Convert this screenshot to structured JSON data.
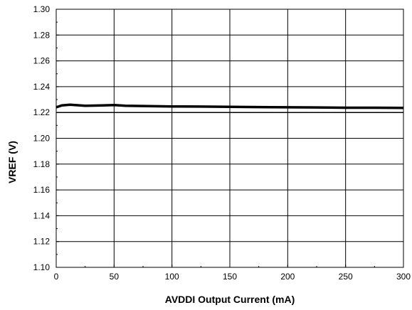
{
  "chart_data": {
    "type": "line",
    "title": "",
    "xlabel": "AVDDI Output Current (mA)",
    "ylabel": "VREF (V)",
    "xlim": [
      0,
      300
    ],
    "ylim": [
      1.1,
      1.3
    ],
    "xticks": [
      "0",
      "50",
      "100",
      "150",
      "200",
      "250",
      "300"
    ],
    "yticks": [
      "1.10",
      "1.12",
      "1.14",
      "1.16",
      "1.18",
      "1.20",
      "1.22",
      "1.24",
      "1.26",
      "1.28",
      "1.30"
    ],
    "grid": true,
    "legend": "none",
    "series": [
      {
        "x": [
          0,
          5,
          12,
          25,
          40,
          50,
          60,
          75,
          100,
          125,
          150,
          175,
          200,
          225,
          250,
          275,
          300
        ],
        "y": [
          1.224,
          1.2255,
          1.226,
          1.2252,
          1.2255,
          1.2258,
          1.2252,
          1.225,
          1.2247,
          1.2246,
          1.2244,
          1.2242,
          1.224,
          1.2239,
          1.2237,
          1.2237,
          1.2236
        ]
      }
    ],
    "reference_lines": [
      1.22
    ],
    "colors": {
      "line": "#000000",
      "grid": "#000000"
    }
  }
}
